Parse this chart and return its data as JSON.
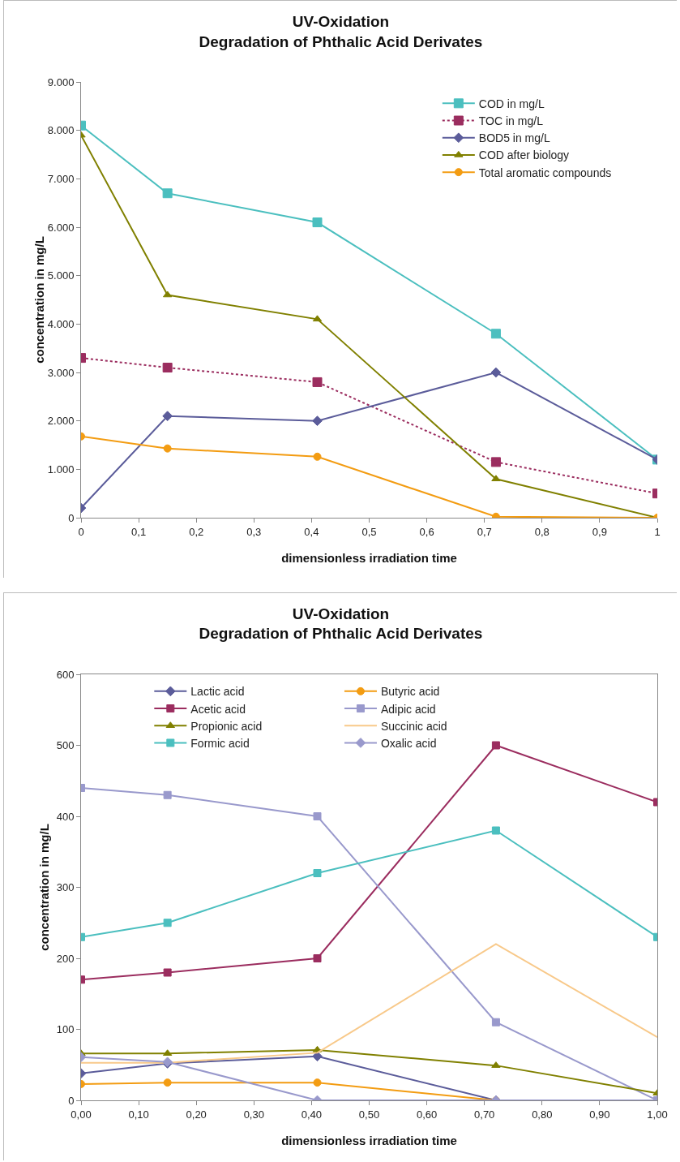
{
  "chart_data": [
    {
      "type": "line",
      "title": "UV-Oxidation\nDegradation of Phthalic Acid Derivates",
      "xlabel": "dimensionless irradiation time",
      "ylabel": "concentration in mg/L",
      "x": [
        0,
        0.15,
        0.41,
        0.72,
        1
      ],
      "xlim": [
        0,
        1
      ],
      "xticks": [
        0,
        {
          "value": 0.1,
          "label": "0,1"
        },
        {
          "value": 0.2,
          "label": "0,2"
        },
        {
          "value": 0.3,
          "label": "0,3"
        },
        {
          "value": 0.4,
          "label": "0,4"
        },
        {
          "value": 0.5,
          "label": "0,5"
        },
        {
          "value": 0.6,
          "label": "0,6"
        },
        {
          "value": 0.7,
          "label": "0,7"
        },
        {
          "value": 0.8,
          "label": "0,8"
        },
        {
          "value": 0.9,
          "label": "0,9"
        },
        1
      ],
      "ylim": [
        0,
        9000
      ],
      "yticks": [
        0,
        {
          "value": 1000,
          "label": "1.000"
        },
        {
          "value": 2000,
          "label": "2.000"
        },
        {
          "value": 3000,
          "label": "3.000"
        },
        {
          "value": 4000,
          "label": "4.000"
        },
        {
          "value": 5000,
          "label": "5.000"
        },
        {
          "value": 6000,
          "label": "6.000"
        },
        {
          "value": 7000,
          "label": "7.000"
        },
        {
          "value": 8000,
          "label": "8.000"
        },
        {
          "value": 9000,
          "label": "9.000"
        }
      ],
      "grid": false,
      "legend": "top right",
      "series": [
        {
          "name": "COD in mg/L",
          "color": "#4bbfbf",
          "marker": "square",
          "line_style": "solid",
          "values": [
            8100,
            6700,
            6100,
            3800,
            1200
          ]
        },
        {
          "name": "TOC in mg/L",
          "color": "#9b2d5f",
          "marker": "square",
          "line_style": "dotted",
          "values": [
            3300,
            3100,
            2800,
            1150,
            500
          ]
        },
        {
          "name": "BOD5 in mg/L",
          "color": "#5b5c9a",
          "marker": "diamond",
          "line_style": "solid",
          "values": [
            200,
            2100,
            2000,
            3000,
            1200
          ]
        },
        {
          "name": "COD after biology",
          "color": "#808000",
          "marker": "triangle",
          "line_style": "solid",
          "values": [
            7900,
            4600,
            4100,
            800,
            0
          ]
        },
        {
          "name": "Total aromatic compounds",
          "color": "#f39c12",
          "marker": "circle",
          "line_style": "solid",
          "values": [
            1680,
            1430,
            1260,
            20,
            0
          ]
        }
      ]
    },
    {
      "type": "line",
      "title": "UV-Oxidation\nDegradation of Phthalic Acid Derivates",
      "xlabel": "dimensionless irradiation time",
      "ylabel": "concentration in mg/L",
      "x": [
        0,
        0.15,
        0.41,
        0.72,
        1
      ],
      "xlim": [
        0,
        1
      ],
      "xticks": [
        {
          "value": 0,
          "label": "0,00"
        },
        {
          "value": 0.1,
          "label": "0,10"
        },
        {
          "value": 0.2,
          "label": "0,20"
        },
        {
          "value": 0.3,
          "label": "0,30"
        },
        {
          "value": 0.4,
          "label": "0,40"
        },
        {
          "value": 0.5,
          "label": "0,50"
        },
        {
          "value": 0.6,
          "label": "0,60"
        },
        {
          "value": 0.7,
          "label": "0,70"
        },
        {
          "value": 0.8,
          "label": "0,80"
        },
        {
          "value": 0.9,
          "label": "0,90"
        },
        {
          "value": 1,
          "label": "1,00"
        }
      ],
      "ylim": [
        0,
        600
      ],
      "yticks": [
        0,
        100,
        200,
        300,
        400,
        500,
        600
      ],
      "grid": false,
      "legend": "top left",
      "series": [
        {
          "name": "Lactic acid",
          "color": "#5b5c9a",
          "marker": "diamond",
          "line_style": "solid",
          "values": [
            38,
            52,
            62,
            0,
            0
          ]
        },
        {
          "name": "Butyric acid",
          "color": "#f39c12",
          "marker": "circle",
          "line_style": "solid",
          "values": [
            23,
            25,
            25,
            0,
            0
          ]
        },
        {
          "name": "Acetic acid",
          "color": "#9b2d5f",
          "marker": "square",
          "line_style": "solid",
          "values": [
            170,
            180,
            200,
            500,
            420
          ]
        },
        {
          "name": "Adipic acid",
          "color": "#9999cc",
          "marker": "square",
          "line_style": "solid",
          "values": [
            440,
            430,
            400,
            110,
            0
          ]
        },
        {
          "name": "Propionic acid",
          "color": "#808000",
          "marker": "triangle",
          "line_style": "solid",
          "values": [
            66,
            66,
            71,
            49,
            10
          ]
        },
        {
          "name": "Succinic acid",
          "color": "#f8c98a",
          "marker": "none",
          "line_style": "solid",
          "values": [
            53,
            53,
            67,
            220,
            89
          ]
        },
        {
          "name": "Formic acid",
          "color": "#4bbfbf",
          "marker": "square",
          "line_style": "solid",
          "values": [
            230,
            250,
            320,
            380,
            230
          ]
        },
        {
          "name": "Oxalic acid",
          "color": "#9999cc",
          "marker": "diamond",
          "line_style": "solid",
          "values": [
            61,
            54,
            0,
            0,
            0
          ]
        }
      ]
    }
  ]
}
